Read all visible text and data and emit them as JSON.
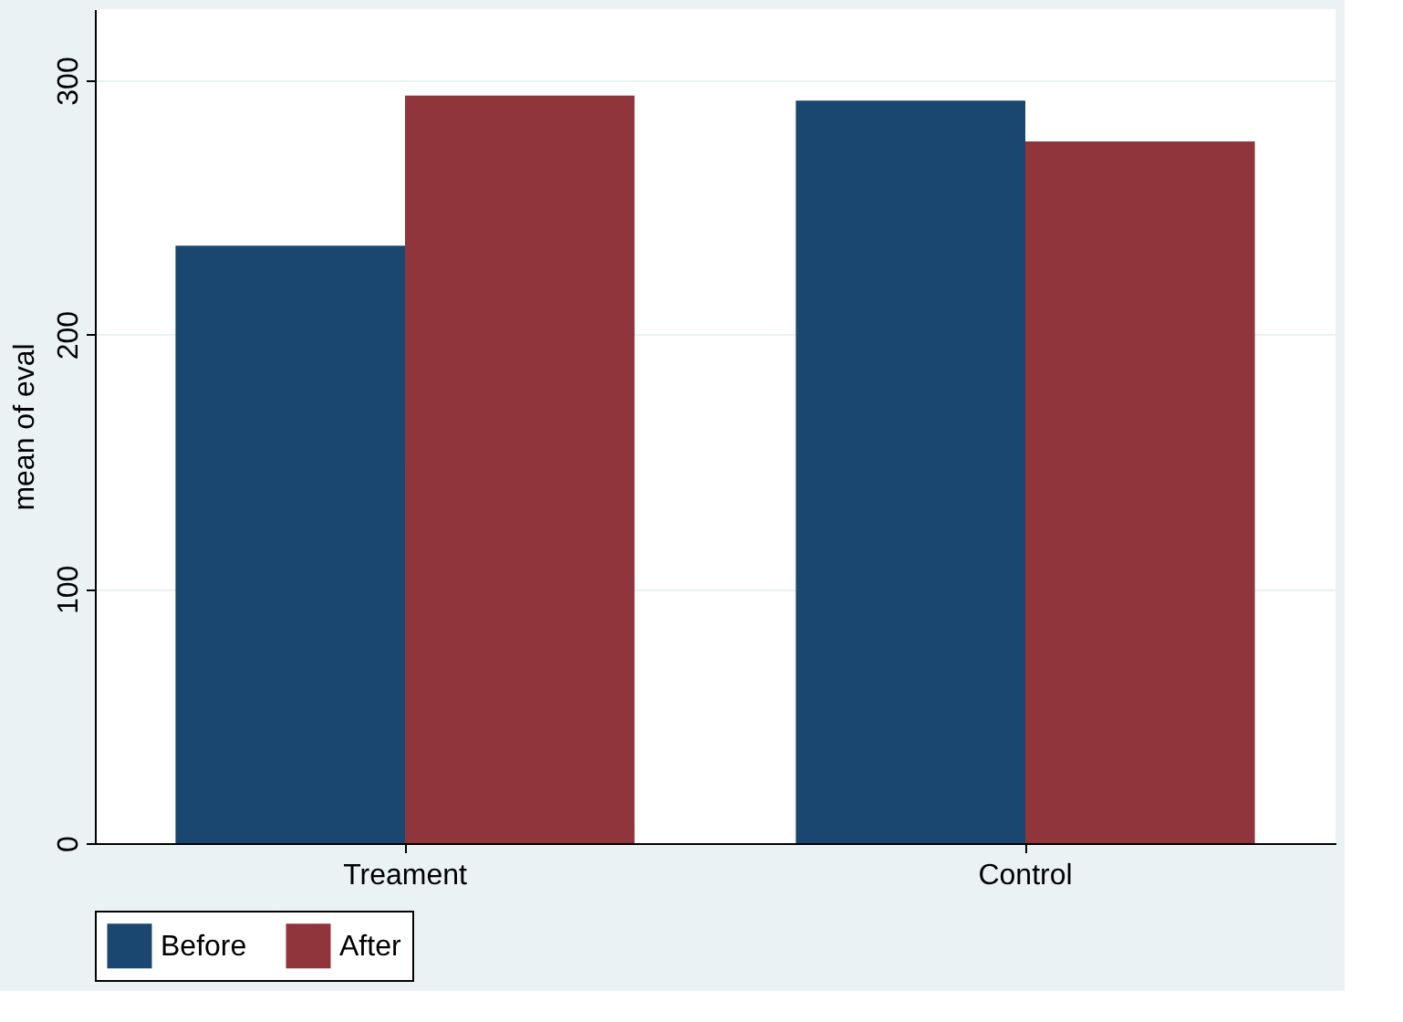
{
  "chart_data": {
    "type": "bar",
    "ylabel": "mean of eval",
    "categories": [
      "Treament",
      "Control"
    ],
    "series": [
      {
        "name": "Before",
        "color": "#1a476f",
        "values": [
          235,
          292
        ]
      },
      {
        "name": "After",
        "color": "#90353b",
        "values": [
          294,
          276
        ]
      }
    ],
    "ylim": [
      0,
      328
    ],
    "yticks": [
      0,
      100,
      200,
      300
    ],
    "grid": "y",
    "legend": "bottom"
  }
}
